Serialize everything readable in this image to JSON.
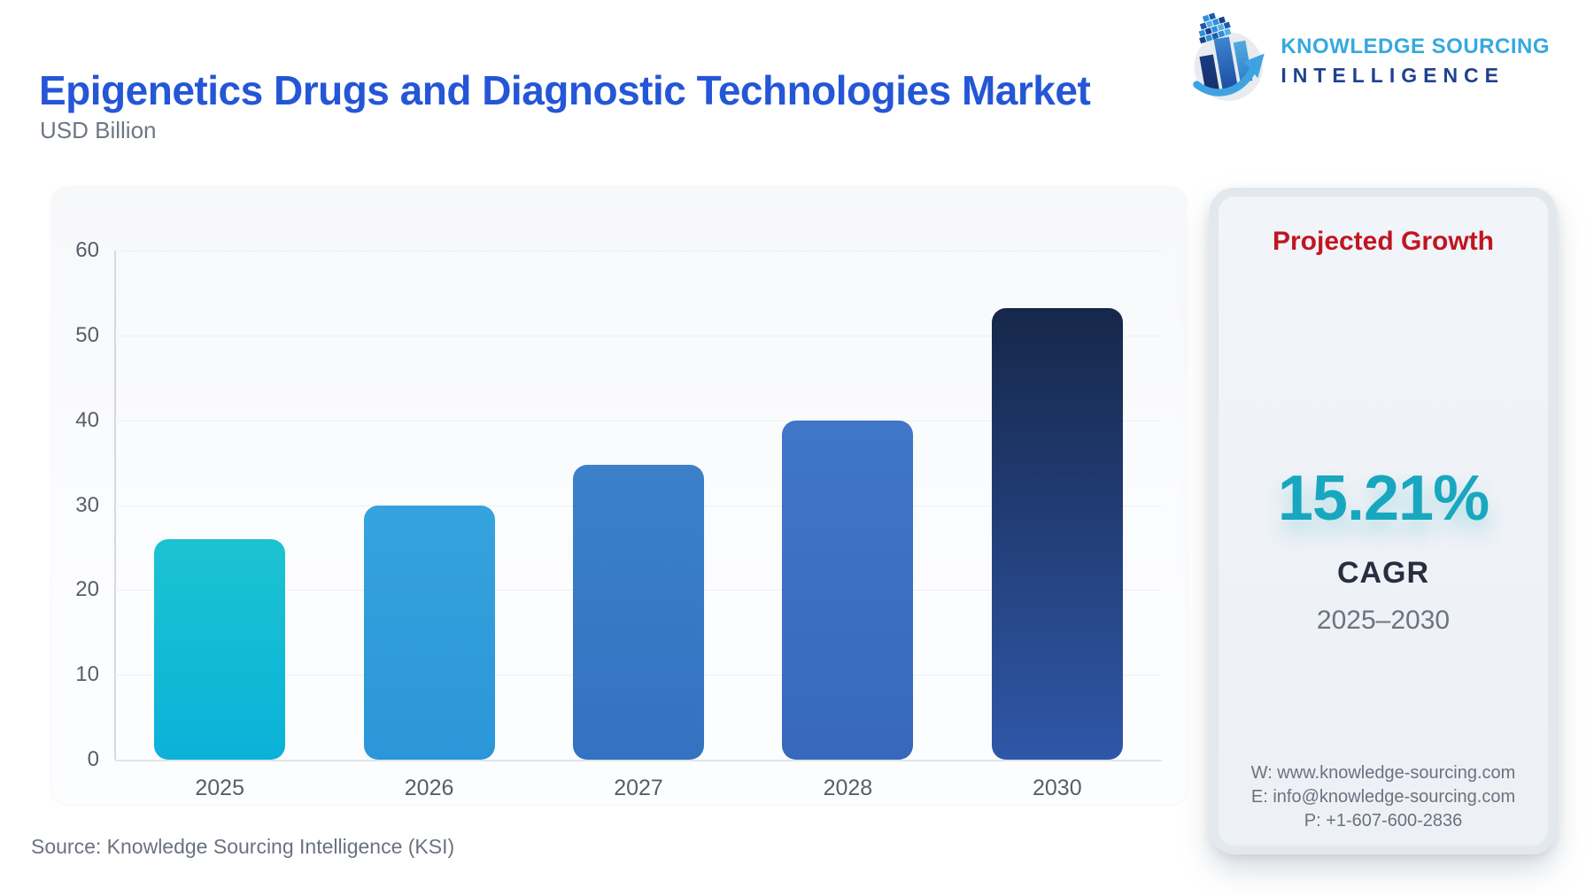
{
  "header": {
    "title": "Epigenetics Drugs and Diagnostic Technologies Market",
    "subtitle": "USD Billion",
    "logo": {
      "line1": "KNOWLEDGE SOURCING",
      "line2": "INTELLIGENCE",
      "line1_color": "#35a9de",
      "line2_color": "#21418f"
    }
  },
  "chart_data": {
    "type": "bar",
    "title": "Epigenetics Drugs and Diagnostic Technologies Market",
    "unit": "USD Billion",
    "categories": [
      "2025",
      "2026",
      "2027",
      "2028",
      "2030"
    ],
    "values": [
      26,
      30,
      34.7,
      40,
      53.2
    ],
    "xlabel": "",
    "ylabel": "USD Billion",
    "ylim": [
      0,
      60
    ],
    "yticks": [
      0,
      10,
      20,
      30,
      40,
      50,
      60
    ],
    "grid": true,
    "legend": "none",
    "bar_colors": [
      {
        "top": "#1bc3d2",
        "bottom": "#0bb2d8"
      },
      {
        "top": "#35a3dd",
        "bottom": "#2b96d9"
      },
      {
        "top": "#3b80c9",
        "bottom": "#3472c2"
      },
      {
        "top": "#4076c8",
        "bottom": "#3768bd"
      },
      {
        "top": "#16274a",
        "bottom": "#2f57a8"
      }
    ]
  },
  "growth_card": {
    "title": "Projected Growth",
    "title_color": "#c01622",
    "value": "15.21%",
    "value_color": "#18a7bf",
    "label": "CAGR",
    "range": "2025–2030",
    "contact": {
      "website": "W: www.knowledge-sourcing.com",
      "email": "E: info@knowledge-sourcing.com",
      "phone": "P: +1-607-600-2836"
    }
  },
  "footer": {
    "source": "Source: Knowledge Sourcing Intelligence (KSI)"
  }
}
